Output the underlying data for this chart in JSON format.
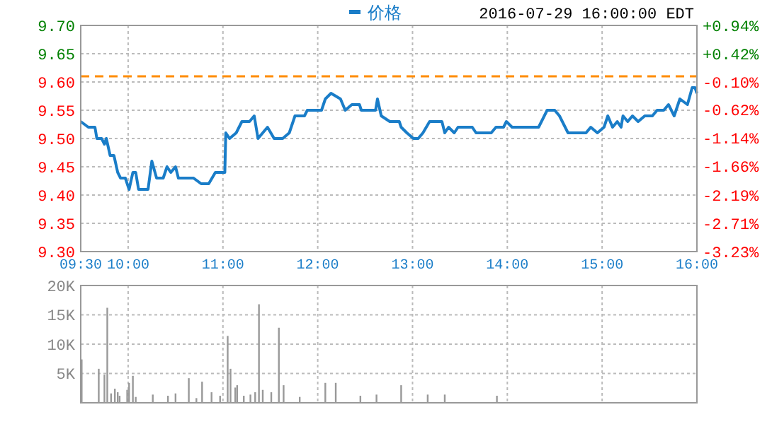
{
  "chart_data": [
    {
      "type": "line",
      "subtitle": "2016-07-29 16:00:00 EDT",
      "grid": true,
      "legend": "top",
      "line_style": "solid",
      "xlim": [
        9.5,
        16
      ],
      "xticks": [
        {
          "value": 9.5,
          "label": "09:30"
        },
        {
          "value": 10,
          "label": "10:00"
        },
        {
          "value": 11,
          "label": "11:00"
        },
        {
          "value": 12,
          "label": "12:00"
        },
        {
          "value": 13,
          "label": "13:00"
        },
        {
          "value": 14,
          "label": "14:00"
        },
        {
          "value": 15,
          "label": "15:00"
        },
        {
          "value": 16,
          "label": "16:00"
        }
      ],
      "ylim": [
        9.3,
        9.7
      ],
      "yticks": [
        {
          "value": 9.3,
          "label": "9.30"
        },
        {
          "value": 9.35,
          "label": "9.35"
        },
        {
          "value": 9.4,
          "label": "9.40"
        },
        {
          "value": 9.45,
          "label": "9.45"
        },
        {
          "value": 9.5,
          "label": "9.50"
        },
        {
          "value": 9.55,
          "label": "9.55"
        },
        {
          "value": 9.6,
          "label": "9.60"
        },
        {
          "value": 9.65,
          "label": "9.65"
        },
        {
          "value": 9.7,
          "label": "9.70"
        }
      ],
      "y2lim": [
        -3.23,
        0.94
      ],
      "y2ticks": [
        {
          "value": -3.23,
          "label": "-3.23%"
        },
        {
          "value": -2.71,
          "label": "-2.71%"
        },
        {
          "value": -2.19,
          "label": "-2.19%"
        },
        {
          "value": -1.66,
          "label": "-1.66%"
        },
        {
          "value": -1.14,
          "label": "-1.14%"
        },
        {
          "value": -0.62,
          "label": "-0.62%"
        },
        {
          "value": -0.1,
          "label": "-0.10%"
        },
        {
          "value": 0.42,
          "label": "+0.42%"
        },
        {
          "value": 0.94,
          "label": "+0.94%"
        }
      ],
      "ref_lines": [
        {
          "axis": "y",
          "value": 9.61,
          "color": "#ff8c00",
          "line_style": "dashed"
        }
      ],
      "series": [
        {
          "name": "价格",
          "color": "#1a7dc8",
          "x": [
            9.5,
            9.58,
            9.65,
            9.67,
            9.72,
            9.75,
            9.77,
            9.81,
            9.85,
            9.89,
            9.92,
            9.97,
            10.01,
            10.05,
            10.08,
            10.11,
            10.21,
            10.25,
            10.3,
            10.37,
            10.41,
            10.45,
            10.5,
            10.53,
            10.69,
            10.77,
            10.85,
            10.92,
            11.02,
            11.03,
            11.07,
            11.14,
            11.2,
            11.28,
            11.33,
            11.37,
            11.47,
            11.54,
            11.63,
            11.7,
            11.76,
            11.86,
            11.89,
            12.04,
            12.08,
            12.14,
            12.24,
            12.29,
            12.36,
            12.44,
            12.46,
            12.61,
            12.63,
            12.67,
            12.76,
            12.86,
            12.88,
            12.94,
            13.01,
            13.06,
            13.11,
            13.18,
            13.31,
            13.34,
            13.38,
            13.44,
            13.48,
            13.63,
            13.67,
            13.83,
            13.88,
            13.96,
            13.99,
            14.05,
            14.33,
            14.42,
            14.5,
            14.55,
            14.64,
            14.83,
            14.88,
            14.95,
            15.02,
            15.06,
            15.11,
            15.16,
            15.2,
            15.22,
            15.27,
            15.32,
            15.38,
            15.45,
            15.53,
            15.58,
            15.65,
            15.7,
            15.76,
            15.82,
            15.9,
            15.95,
            15.98,
            16
          ],
          "values": [
            9.53,
            9.52,
            9.52,
            9.5,
            9.5,
            9.49,
            9.5,
            9.47,
            9.47,
            9.44,
            9.43,
            9.43,
            9.41,
            9.44,
            9.44,
            9.41,
            9.41,
            9.46,
            9.43,
            9.43,
            9.45,
            9.44,
            9.45,
            9.43,
            9.43,
            9.42,
            9.42,
            9.44,
            9.44,
            9.51,
            9.5,
            9.51,
            9.53,
            9.53,
            9.54,
            9.5,
            9.52,
            9.5,
            9.5,
            9.51,
            9.54,
            9.54,
            9.55,
            9.55,
            9.57,
            9.58,
            9.57,
            9.55,
            9.56,
            9.56,
            9.55,
            9.55,
            9.57,
            9.54,
            9.53,
            9.53,
            9.52,
            9.51,
            9.5,
            9.5,
            9.51,
            9.53,
            9.53,
            9.51,
            9.52,
            9.51,
            9.52,
            9.52,
            9.51,
            9.51,
            9.52,
            9.52,
            9.53,
            9.52,
            9.52,
            9.55,
            9.55,
            9.54,
            9.51,
            9.51,
            9.52,
            9.51,
            9.52,
            9.54,
            9.52,
            9.53,
            9.52,
            9.54,
            9.53,
            9.54,
            9.53,
            9.54,
            9.54,
            9.55,
            9.55,
            9.56,
            9.54,
            9.57,
            9.56,
            9.59,
            9.59,
            9.58
          ]
        }
      ]
    },
    {
      "type": "bar",
      "grid": true,
      "tick_labels": "y",
      "xlim": [
        9.5,
        16
      ],
      "xticks": [
        {
          "value": 9.5,
          "label": null
        },
        {
          "value": 10,
          "label": null
        },
        {
          "value": 11,
          "label": null
        },
        {
          "value": 12,
          "label": null
        },
        {
          "value": 13,
          "label": null
        },
        {
          "value": 14,
          "label": null
        },
        {
          "value": 15,
          "label": null
        },
        {
          "value": 16,
          "label": null
        }
      ],
      "ylim": [
        0,
        20000
      ],
      "yticks": [
        {
          "value": 0,
          "label": null
        },
        {
          "value": 5000,
          "label": "5K"
        },
        {
          "value": 10000,
          "label": "10K"
        },
        {
          "value": 15000,
          "label": "15K"
        },
        {
          "value": 20000,
          "label": "20K"
        }
      ],
      "series": [
        {
          "color": "#999999",
          "x": [
            9.51,
            9.69,
            9.75,
            9.78,
            9.82,
            9.86,
            9.89,
            9.91,
            9.99,
            10.01,
            10.05,
            10.08,
            10.26,
            10.42,
            10.5,
            10.64,
            10.72,
            10.78,
            10.88,
            10.97,
            11.05,
            11.08,
            11.13,
            11.15,
            11.22,
            11.29,
            11.34,
            11.38,
            11.42,
            11.51,
            11.59,
            11.64,
            11.81,
            12.08,
            12.19,
            12.45,
            12.62,
            12.88,
            13.16,
            13.34,
            13.89
          ],
          "values": [
            7400,
            5800,
            4800,
            16200,
            1600,
            2400,
            1800,
            1200,
            2200,
            3400,
            4600,
            1000,
            1400,
            1200,
            1600,
            4200,
            800,
            3600,
            1800,
            1200,
            11400,
            5800,
            2600,
            3000,
            1200,
            1400,
            1800,
            16800,
            2200,
            1800,
            12800,
            3000,
            1000,
            3400,
            3400,
            1200,
            1400,
            3000,
            1400,
            1400,
            1200
          ]
        }
      ]
    }
  ]
}
